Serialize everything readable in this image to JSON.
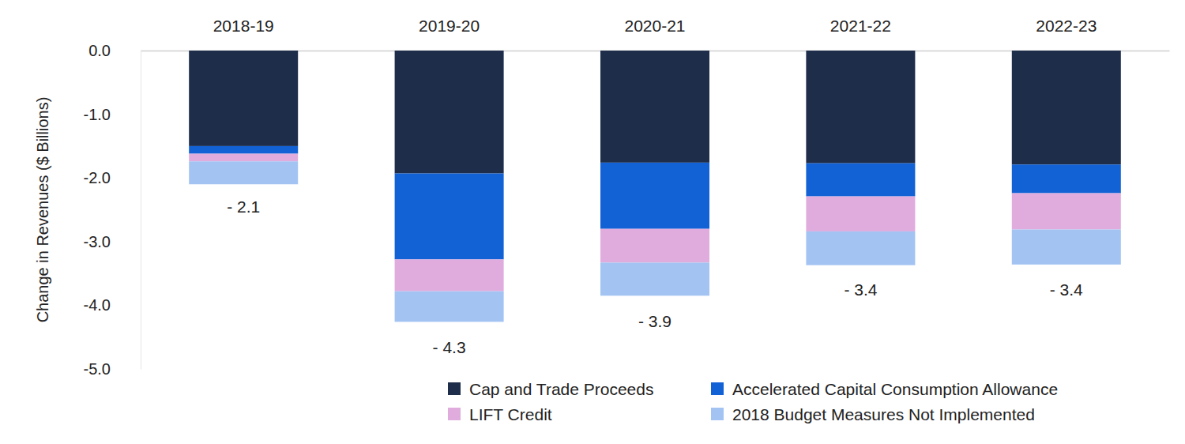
{
  "chart_data": {
    "type": "bar",
    "stacked": true,
    "legend": "bottom",
    "grid": false,
    "y_label": "Change in Revenues ($ Billions)",
    "categories": [
      "2018-19",
      "2019-20",
      "2020-21",
      "2021-22",
      "2022-23"
    ],
    "series": [
      {
        "name": "Cap and Trade Proceeds",
        "color": "#1e2d4a",
        "values": [
          -1.5,
          -1.93,
          -1.76,
          -1.77,
          -1.79
        ]
      },
      {
        "name": "Accelerated Capital Consumption Allowance",
        "color": "#1262d6",
        "values": [
          -0.12,
          -1.35,
          -1.04,
          -0.52,
          -0.45
        ]
      },
      {
        "name": "LIFT Credit",
        "color": "#e0acdd",
        "values": [
          -0.12,
          -0.5,
          -0.53,
          -0.55,
          -0.57
        ]
      },
      {
        "name": "2018 Budget Measures Not Implemented",
        "color": "#a3c4f3",
        "values": [
          -0.36,
          -0.48,
          -0.52,
          -0.53,
          -0.55
        ]
      }
    ],
    "totals": [
      -2.1,
      -4.3,
      -3.9,
      -3.4,
      -3.4
    ],
    "total_labels": [
      "- 2.1",
      "- 4.3",
      "- 3.9",
      "- 3.4",
      "- 3.4"
    ],
    "ylim": [
      -5,
      0
    ],
    "yticks": [
      {
        "value": 0,
        "label": "0.0"
      },
      {
        "value": -1,
        "label": "-1.0"
      },
      {
        "value": -2,
        "label": "-2.0"
      },
      {
        "value": -3,
        "label": "-3.0"
      },
      {
        "value": -4,
        "label": "-4.0"
      },
      {
        "value": -5,
        "label": "-5.0"
      }
    ]
  }
}
